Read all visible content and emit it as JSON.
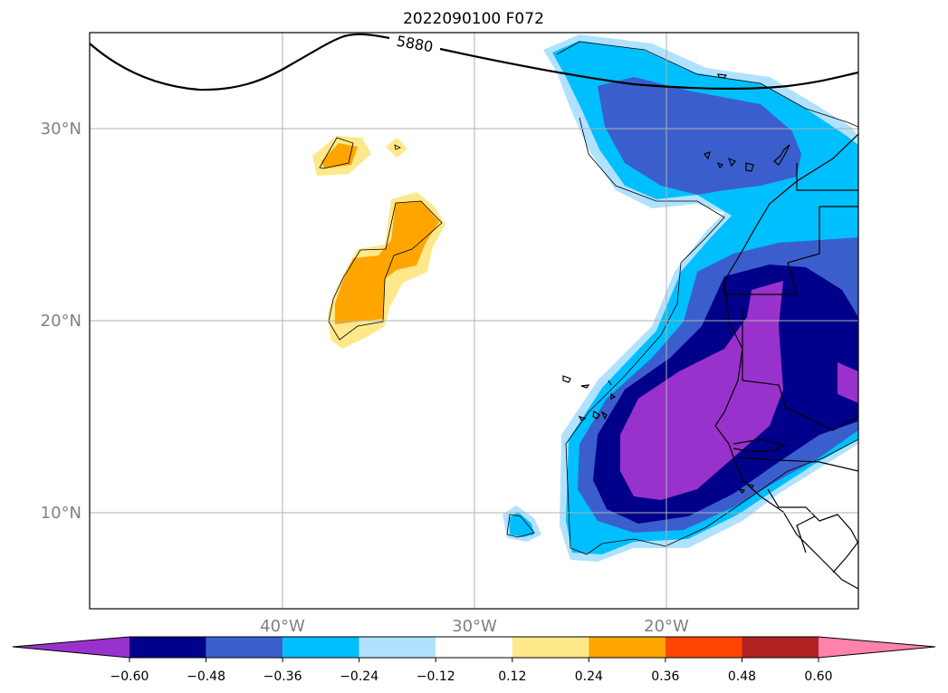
{
  "title": "2022090100 F072",
  "contour_label": "5880",
  "lat_labels": [
    "30°N",
    "20°N",
    "10°N"
  ],
  "lon_labels": [
    "40°W",
    "30°W",
    "20°W"
  ],
  "colorbar": {
    "ticks": [
      "−0.60",
      "−0.48",
      "−0.36",
      "−0.24",
      "−0.12",
      "0.12",
      "0.24",
      "0.36",
      "0.48",
      "0.60"
    ],
    "colors": [
      "#9932cc",
      "#00008b",
      "#3a5fcd",
      "#00bfff",
      "#b0e2ff",
      "#ffffff",
      "#ffe88a",
      "#ffa500",
      "#ff4500",
      "#b22222",
      "#ff82ab"
    ]
  },
  "map": {
    "extent": {
      "lon_min": -50,
      "lon_max": -10,
      "lat_min": 5,
      "lat_max": 35
    },
    "field_colors": {
      "very_light_blue": "#b0e2ff",
      "light_blue": "#00bfff",
      "mid_blue": "#3a5fcd",
      "dark_blue": "#00008b",
      "purple": "#9932cc",
      "light_yellow": "#ffe88a",
      "orange": "#ffa500"
    }
  }
}
